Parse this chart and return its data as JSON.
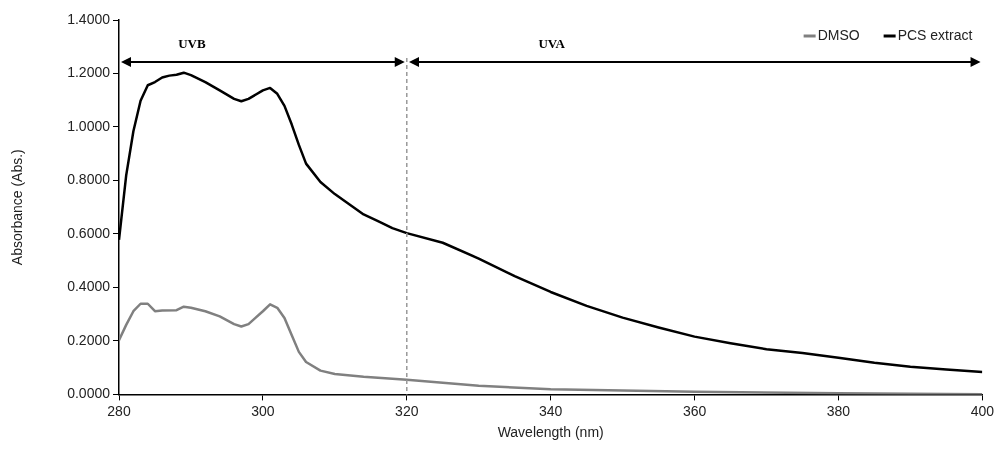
{
  "chart_data": {
    "type": "line",
    "xlabel": "Wavelength (nm)",
    "ylabel": "Absorbance (Abs.)",
    "xlim": [
      280,
      400
    ],
    "xticks": [
      280,
      300,
      320,
      340,
      360,
      380,
      400
    ],
    "ylim": [
      0,
      1.4
    ],
    "yticks": [
      {
        "value": 0,
        "label": "0.0000"
      },
      {
        "value": 0.2,
        "label": "0.2000"
      },
      {
        "value": 0.4,
        "label": "0.4000"
      },
      {
        "value": 0.6,
        "label": "0.6000"
      },
      {
        "value": 0.8,
        "label": "0.8000"
      },
      {
        "value": 1.0,
        "label": "1.0000"
      },
      {
        "value": 1.2,
        "label": "1.2000"
      },
      {
        "value": 1.4,
        "label": "1.4000"
      }
    ],
    "grid": false,
    "legend": "top right",
    "marker": "none",
    "line_style": "solid",
    "series": [
      {
        "name": "DMSO",
        "color": "#808080",
        "x": [
          280,
          281,
          282,
          283,
          284,
          285,
          286,
          288,
          289,
          290,
          292,
          294,
          296,
          297,
          298,
          300,
          301,
          302,
          303,
          304,
          305,
          306,
          308,
          310,
          314,
          320,
          330,
          340,
          350,
          360,
          380,
          400
        ],
        "values": [
          0.203,
          0.26,
          0.311,
          0.339,
          0.339,
          0.311,
          0.314,
          0.315,
          0.328,
          0.324,
          0.311,
          0.292,
          0.263,
          0.254,
          0.263,
          0.311,
          0.337,
          0.324,
          0.286,
          0.222,
          0.159,
          0.121,
          0.089,
          0.076,
          0.066,
          0.055,
          0.032,
          0.019,
          0.015,
          0.01,
          0.004,
          0.001
        ]
      },
      {
        "name": "PCS extract",
        "color": "#000000",
        "x": [
          280,
          281,
          282,
          283,
          284,
          285,
          286,
          287,
          288,
          289,
          290,
          292,
          294,
          296,
          297,
          298,
          300,
          301,
          302,
          303,
          304,
          305,
          306,
          308,
          310,
          312,
          314,
          316,
          318,
          320,
          325,
          330,
          335,
          340,
          345,
          350,
          355,
          360,
          365,
          370,
          375,
          380,
          385,
          390,
          395,
          400
        ],
        "values": [
          0.578,
          0.819,
          0.984,
          1.098,
          1.156,
          1.168,
          1.185,
          1.192,
          1.195,
          1.203,
          1.194,
          1.168,
          1.137,
          1.105,
          1.096,
          1.105,
          1.137,
          1.146,
          1.124,
          1.079,
          1.01,
          0.933,
          0.863,
          0.794,
          0.749,
          0.711,
          0.673,
          0.648,
          0.622,
          0.603,
          0.567,
          0.508,
          0.442,
          0.383,
          0.331,
          0.287,
          0.25,
          0.216,
          0.191,
          0.169,
          0.155,
          0.137,
          0.118,
          0.103,
          0.093,
          0.084
        ]
      }
    ],
    "ref_lines": [
      {
        "axis": "x",
        "value": 320,
        "color": "#999999",
        "line_style": "dashed"
      }
    ],
    "annotations": [
      "UVB",
      "UVA"
    ]
  }
}
